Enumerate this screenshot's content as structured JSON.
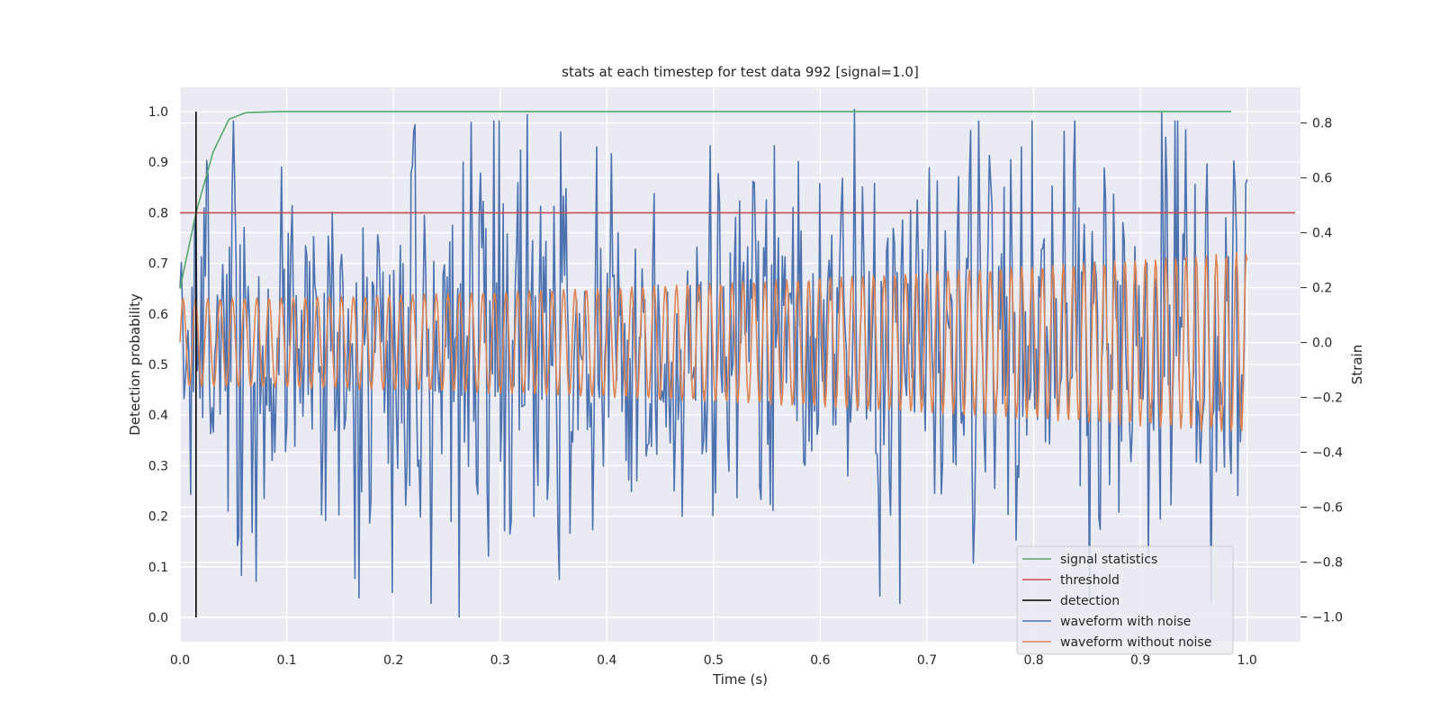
{
  "chart_data": {
    "type": "line",
    "title": "stats at each timestep for test data 992 [signal=1.0]",
    "xlabel": "Time (s)",
    "ylabel_left": "Detection probability",
    "ylabel_right": "Strain",
    "xlim": [
      0.0,
      1.05
    ],
    "ylim_left": [
      -0.048,
      1.048
    ],
    "ylim_right": [
      -1.09,
      0.93
    ],
    "x_ticks": [
      "0.0",
      "0.1",
      "0.2",
      "0.3",
      "0.4",
      "0.5",
      "0.6",
      "0.7",
      "0.8",
      "0.9",
      "1.0"
    ],
    "y_left_ticks": [
      "0.0",
      "0.1",
      "0.2",
      "0.3",
      "0.4",
      "0.5",
      "0.6",
      "0.7",
      "0.8",
      "0.9",
      "1.0"
    ],
    "y_right_ticks": [
      "−1.0",
      "−0.8",
      "−0.6",
      "−0.4",
      "−0.2",
      "0.0",
      "0.2",
      "0.4",
      "0.6",
      "0.8"
    ],
    "grid": true,
    "legend_position": "lower-right",
    "series": [
      {
        "name": "signal statistics",
        "axis": "left",
        "color": "#55a868",
        "x": [
          0.0,
          0.015,
          0.031,
          0.046,
          0.062,
          0.077,
          0.093,
          0.2,
          0.4,
          0.6,
          0.8,
          0.985
        ],
        "y": [
          0.65,
          0.8,
          0.92,
          0.985,
          0.998,
          0.999,
          1.0,
          1.0,
          1.0,
          1.0,
          1.0,
          1.0
        ]
      },
      {
        "name": "threshold",
        "axis": "left",
        "color": "#c44e52",
        "x": [
          0.0,
          1.045
        ],
        "y": [
          0.8,
          0.8
        ]
      },
      {
        "name": "detection",
        "axis": "left",
        "color": "#000000",
        "x": [
          0.015,
          0.015
        ],
        "y": [
          0.0,
          1.0
        ]
      },
      {
        "name": "waveform with noise",
        "axis": "right",
        "color": "#4c72b0",
        "x_range": [
          0.0,
          1.0
        ],
        "points": 800,
        "y_range": [
          -1.0,
          0.85
        ],
        "y_peaks": [
          [
            0.262,
            -1.0
          ],
          [
            0.632,
            0.85
          ],
          [
            0.92,
            0.84
          ],
          [
            0.326,
            0.83
          ],
          [
            0.071,
            -0.87
          ]
        ]
      },
      {
        "name": "waveform without noise",
        "axis": "right",
        "color": "#dd8452",
        "x_range": [
          0.0,
          1.0
        ],
        "points": 1000,
        "amplitude_start": 0.16,
        "amplitude_end": 0.33,
        "cycles": 86
      }
    ]
  }
}
